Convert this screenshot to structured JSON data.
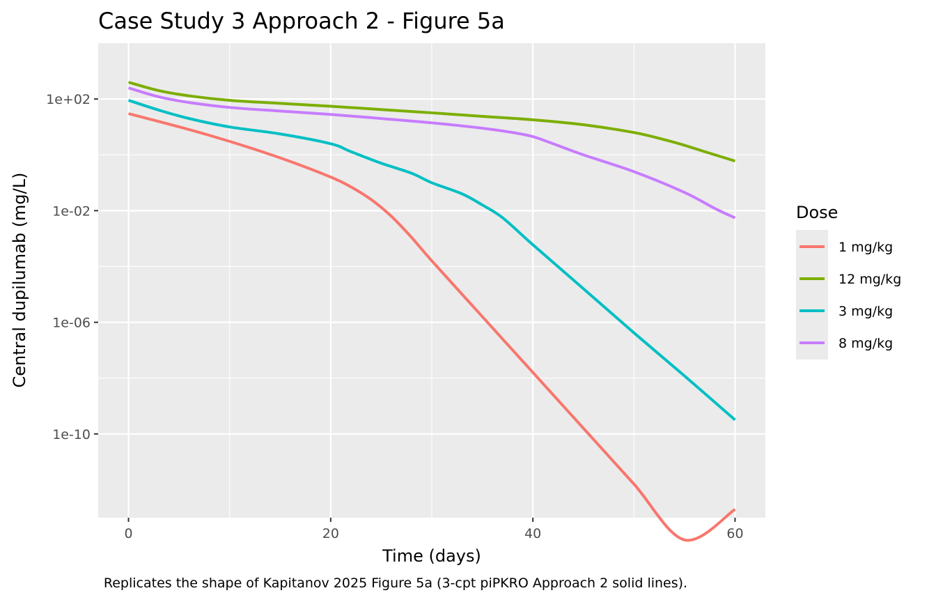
{
  "chart_data": {
    "type": "line",
    "title": "Case Study 3 Approach 2 - Figure 5a",
    "xlabel": "Time (days)",
    "ylabel": "Central dupilumab (mg/L)",
    "caption": "Replicates the shape of Kapitanov 2025 Figure 5a (3-cpt piPKRO Approach 2 solid lines).",
    "x_scale": "linear",
    "y_scale": "log10",
    "xlim": [
      -3,
      63
    ],
    "ylim": [
      1e-13,
      10000.0
    ],
    "x_ticks": [
      0,
      20,
      40,
      60
    ],
    "x_tick_labels": [
      "0",
      "20",
      "40",
      "60"
    ],
    "y_ticks": [
      100,
      0.01,
      1e-06,
      1e-10
    ],
    "y_tick_labels": [
      "1e+02",
      "1e-02",
      "1e-06",
      "1e-10"
    ],
    "grid": true,
    "legend_title": "Dose",
    "legend_position": "right",
    "series": [
      {
        "name": "1 mg/kg",
        "color": "#F8766D",
        "x": [
          0,
          4,
          8,
          12,
          16,
          20,
          22,
          24,
          26,
          28,
          30,
          35,
          40,
          45,
          50,
          55,
          60
        ],
        "y": [
          30,
          12.6,
          5.0,
          1.8,
          0.58,
          0.16,
          0.071,
          0.025,
          0.0063,
          0.0011,
          0.00016,
          1.6e-06,
          1.6e-08,
          1.6e-10,
          1.6e-12,
          1.6e-14,
          2e-13
        ]
      },
      {
        "name": "12 mg/kg",
        "color": "#7CAE00",
        "x": [
          0,
          3,
          6,
          10,
          15,
          20,
          25,
          30,
          35,
          40,
          45,
          50,
          53,
          55,
          57,
          60
        ],
        "y": [
          400,
          200,
          130,
          90,
          70,
          55,
          42,
          32,
          24,
          18,
          12,
          6.3,
          3.5,
          2.2,
          1.3,
          0.6
        ]
      },
      {
        "name": "3 mg/kg",
        "color": "#00BFC4",
        "x": [
          0,
          3,
          6,
          10,
          15,
          20,
          22,
          25,
          28,
          30,
          33,
          35,
          37,
          40,
          45,
          50,
          55,
          60
        ],
        "y": [
          90,
          40,
          20,
          10,
          5.6,
          2.5,
          1.3,
          0.5,
          0.22,
          0.1,
          0.04,
          0.016,
          0.0056,
          0.0006,
          1.6e-05,
          4.2e-07,
          1.2e-08,
          3.2e-10
        ]
      },
      {
        "name": "8 mg/kg",
        "color": "#C77CFF",
        "x": [
          0,
          3,
          6,
          10,
          15,
          20,
          25,
          30,
          35,
          38,
          40,
          42,
          45,
          50,
          55,
          58,
          60
        ],
        "y": [
          250,
          120,
          75,
          50,
          37,
          28,
          20,
          14,
          9,
          6.3,
          4.5,
          2.5,
          1.0,
          0.25,
          0.045,
          0.012,
          0.0055
        ]
      }
    ],
    "legend_order": [
      "1 mg/kg",
      "12 mg/kg",
      "3 mg/kg",
      "8 mg/kg"
    ]
  }
}
